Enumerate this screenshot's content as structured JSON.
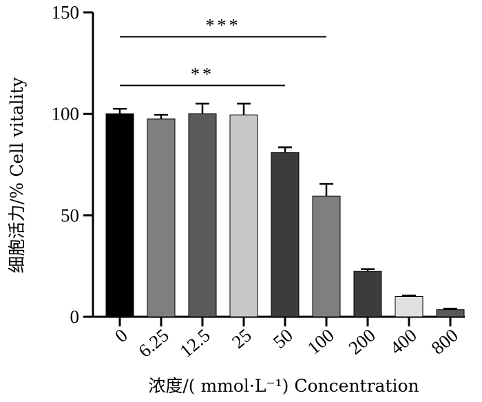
{
  "chart_data": {
    "type": "bar",
    "categories": [
      "0",
      "6.25",
      "12.5",
      "25",
      "50",
      "100",
      "200",
      "400",
      "800"
    ],
    "values": [
      100,
      97.5,
      100,
      99.5,
      81,
      59.5,
      22.5,
      10,
      3.5
    ],
    "errors": [
      2.5,
      2,
      5,
      5.5,
      2.5,
      6,
      1,
      0.5,
      0.5
    ],
    "bar_colors": [
      "#000000",
      "#7f7f7f",
      "#5a5a5a",
      "#c8c8c8",
      "#3c3c3c",
      "#7f7f7f",
      "#3c3c3c",
      "#e0e0e0",
      "#5a5a5a"
    ],
    "xlabel": "浓度/( mmol·L⁻¹)  Concentration",
    "ylabel": "细胞活力/%  Cell vitality",
    "ylim": [
      0,
      150
    ],
    "yticks": [
      "0",
      "50",
      "100",
      "150"
    ],
    "significance": [
      {
        "from": "0",
        "to": "100",
        "label": "***",
        "y": 138
      },
      {
        "from": "0",
        "to": "50",
        "label": "**",
        "y": 114
      }
    ],
    "grid": false
  }
}
